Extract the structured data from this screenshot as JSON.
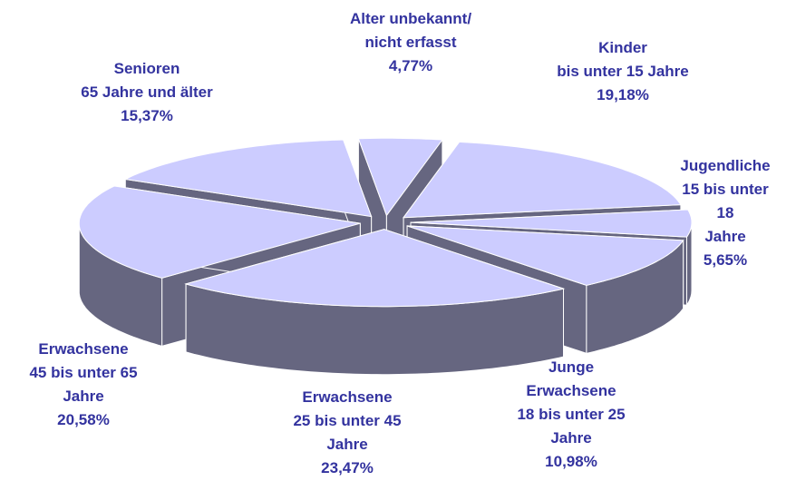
{
  "chart_data": {
    "type": "pie",
    "categories": [
      "Alter unbekannt/\nnicht erfasst",
      "Kinder\nbis unter 15 Jahre",
      "Jugendliche\n15 bis unter 18\nJahre",
      "Junge\nErwachsene\n18 bis unter 25\nJahre",
      "Erwachsene\n25 bis unter 45\nJahre",
      "Erwachsene\n45 bis unter 65\nJahre",
      "Senioren\n65 Jahre und älter"
    ],
    "values": [
      4.77,
      19.18,
      5.65,
      10.98,
      23.47,
      20.58,
      15.37
    ],
    "value_labels": [
      "4,77%",
      "19,18%",
      "5,65%",
      "10,98%",
      "23,47%",
      "20,58%",
      "15,37%"
    ],
    "color": "#ccccff",
    "side_color": "#666680",
    "label_color": "#33339f"
  }
}
